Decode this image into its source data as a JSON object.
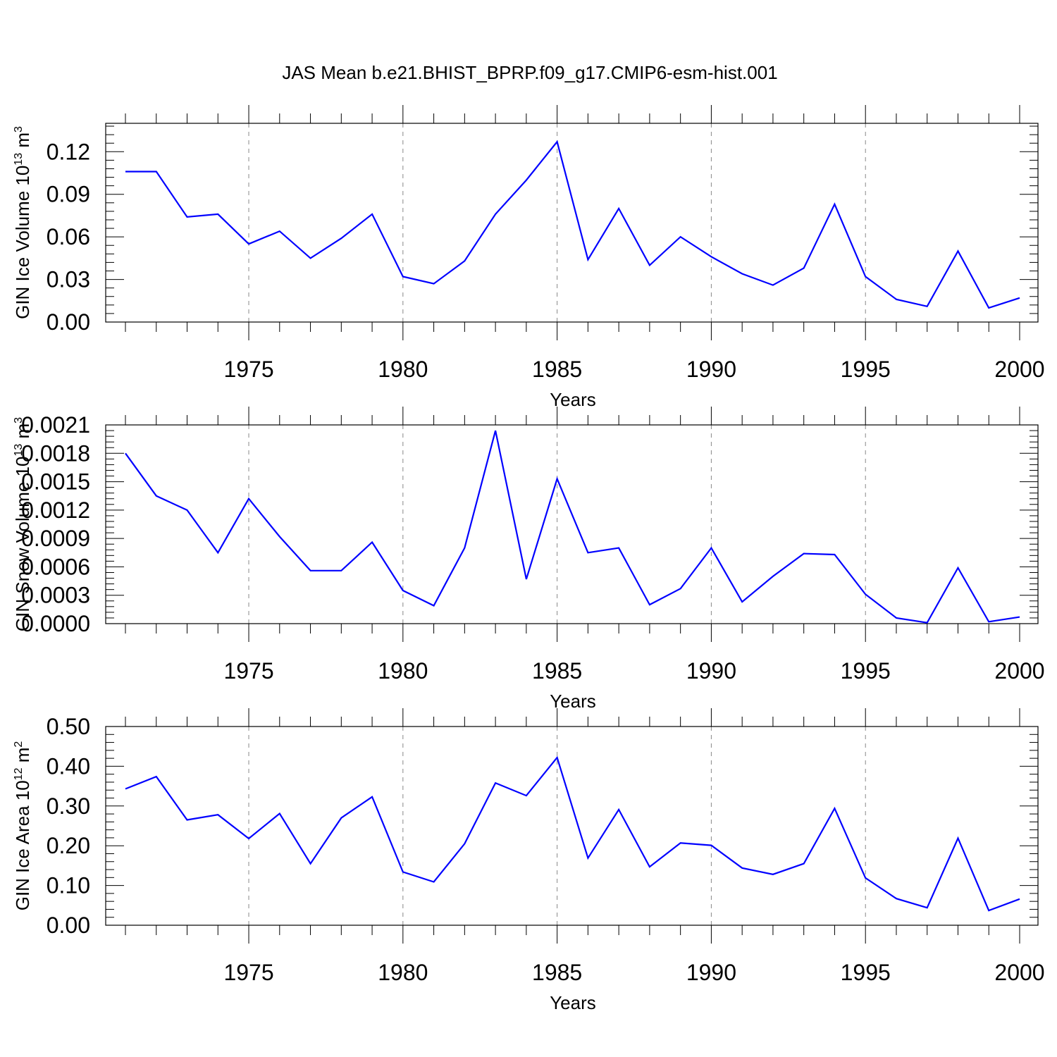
{
  "figure_title": "JAS Mean b.e21.BHIST_BPRP.f09_g17.CMIP6-esm-hist.001",
  "colors": {
    "line": "#0000ff",
    "axis": "#000000",
    "grid": "#888888"
  },
  "chart_data": [
    {
      "type": "line",
      "ylabel": "GIN Ice Volume 10",
      "ylabel_exp": "13",
      "ylabel_unit": " m",
      "ylabel_unit_exp": "3",
      "xlabel": "Years",
      "xlim": [
        1971,
        2000
      ],
      "ylim": [
        0,
        0.14
      ],
      "yticks": [
        0.0,
        0.03,
        0.06,
        0.09,
        0.12
      ],
      "yticklabels": [
        "0.00",
        "0.03",
        "0.06",
        "0.09",
        "0.12"
      ],
      "xticks": [
        1975,
        1980,
        1985,
        1990,
        1995,
        2000
      ],
      "xticklabels": [
        "1975",
        "1980",
        "1985",
        "1990",
        "1995",
        "2000"
      ],
      "grid": "x-dashed",
      "x": [
        1971,
        1972,
        1973,
        1974,
        1975,
        1976,
        1977,
        1978,
        1979,
        1980,
        1981,
        1982,
        1983,
        1984,
        1985,
        1986,
        1987,
        1988,
        1989,
        1990,
        1991,
        1992,
        1993,
        1994,
        1995,
        1996,
        1997,
        1998,
        1999,
        2000
      ],
      "series": [
        {
          "values": [
            0.106,
            0.106,
            0.074,
            0.076,
            0.055,
            0.064,
            0.045,
            0.059,
            0.076,
            0.032,
            0.027,
            0.043,
            0.076,
            0.1,
            0.127,
            0.044,
            0.08,
            0.04,
            0.06,
            0.046,
            0.034,
            0.026,
            0.038,
            0.083,
            0.032,
            0.016,
            0.011,
            0.05,
            0.01,
            0.017
          ]
        }
      ]
    },
    {
      "type": "line",
      "ylabel": "GIN Snow Volume 10",
      "ylabel_exp": "13",
      "ylabel_unit": " m",
      "ylabel_unit_exp": "3",
      "xlabel": "Years",
      "xlim": [
        1971,
        2000
      ],
      "ylim": [
        0,
        0.0021
      ],
      "yticks": [
        0.0,
        0.0003,
        0.0006,
        0.0009,
        0.0012,
        0.0015,
        0.0018,
        0.0021
      ],
      "yticklabels": [
        "0.0000",
        "0.0003",
        "0.0006",
        "0.0009",
        "0.0012",
        "0.0015",
        "0.0018",
        "0.0021"
      ],
      "xticks": [
        1975,
        1980,
        1985,
        1990,
        1995,
        2000
      ],
      "xticklabels": [
        "1975",
        "1980",
        "1985",
        "1990",
        "1995",
        "2000"
      ],
      "grid": "x-dashed",
      "x": [
        1971,
        1972,
        1973,
        1974,
        1975,
        1976,
        1977,
        1978,
        1979,
        1980,
        1981,
        1982,
        1983,
        1984,
        1985,
        1986,
        1987,
        1988,
        1989,
        1990,
        1991,
        1992,
        1993,
        1994,
        1995,
        1996,
        1997,
        1998,
        1999,
        2000
      ],
      "series": [
        {
          "values": [
            0.0018,
            0.00135,
            0.0012,
            0.00075,
            0.00132,
            0.00092,
            0.00056,
            0.00056,
            0.00086,
            0.00035,
            0.00019,
            0.0008,
            0.00204,
            0.00047,
            0.00153,
            0.00075,
            0.0008,
            0.0002,
            0.00037,
            0.0008,
            0.00023,
            0.0005,
            0.00074,
            0.00073,
            0.00031,
            6e-05,
            1e-05,
            0.00059,
            2e-05,
            7e-05
          ]
        }
      ]
    },
    {
      "type": "line",
      "ylabel": "GIN Ice Area 10",
      "ylabel_exp": "12",
      "ylabel_unit": " m",
      "ylabel_unit_exp": "2",
      "xlabel": "Years",
      "xlim": [
        1971,
        2000
      ],
      "ylim": [
        0,
        0.5
      ],
      "yticks": [
        0.0,
        0.1,
        0.2,
        0.3,
        0.4,
        0.5
      ],
      "yticklabels": [
        "0.00",
        "0.10",
        "0.20",
        "0.30",
        "0.40",
        "0.50"
      ],
      "xticks": [
        1975,
        1980,
        1985,
        1990,
        1995,
        2000
      ],
      "xticklabels": [
        "1975",
        "1980",
        "1985",
        "1990",
        "1995",
        "2000"
      ],
      "grid": "x-dashed",
      "x": [
        1971,
        1972,
        1973,
        1974,
        1975,
        1976,
        1977,
        1978,
        1979,
        1980,
        1981,
        1982,
        1983,
        1984,
        1985,
        1986,
        1987,
        1988,
        1989,
        1990,
        1991,
        1992,
        1993,
        1994,
        1995,
        1996,
        1997,
        1998,
        1999,
        2000
      ],
      "series": [
        {
          "values": [
            0.343,
            0.374,
            0.265,
            0.278,
            0.218,
            0.281,
            0.155,
            0.27,
            0.323,
            0.134,
            0.109,
            0.205,
            0.358,
            0.326,
            0.422,
            0.169,
            0.291,
            0.147,
            0.207,
            0.201,
            0.144,
            0.128,
            0.155,
            0.294,
            0.119,
            0.067,
            0.044,
            0.219,
            0.037,
            0.066
          ]
        }
      ]
    }
  ]
}
